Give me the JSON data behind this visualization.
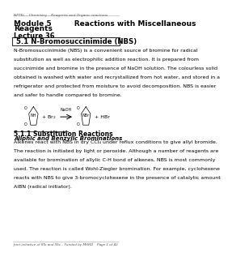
{
  "header_text": "NPTEL – Chemistry – Reagents and Organic reactions",
  "title_line1": "Module 5         Reactions with Miscellaneous",
  "title_line2": "Reagents",
  "lecture": "Lecture 36",
  "section_box": "5.1 N-Bromosuccinimide (NBS)",
  "para1": "N-Bromosuccinimide (NBS) is a convenient source of bromine for radical\nsubstitution as well as electrophilic addition reaction. It is prepared from\nsuccinimide and bromine in the presence of NaOH solution. The colourless solid\nobtained is washed with water and recrystallized from hot water, and stored in a\nrefrigerator and protected from moisture to avoid decomposition. NBS is easier\nand safer to handle compared to bromine.",
  "section2": "5.1.1 Substitution Reactions",
  "subsection2": "Aliphic and Benzylic Brominations",
  "para2": "Alkenes react with NBS in dry CCl₄ under reflux conditions to give allyl bromide.\nThe reaction is initiated by light or peroxide. Although a number of reagents are\navailable for bromination of allylic C-H bond of alkenes, NBS is most commonly\nused. The reaction is called Wohl-Ziegler bromination. For example, cyclohexene\nreacts with NBS to give 3-bromocyclohexene in the presence of catalytic amount\nAIBN (radical initiator).",
  "footer_left": "Joint initiative of IITs and IISc – Funded by MHRD",
  "footer_right": "Page 1 of 42",
  "bg_color": "#ffffff",
  "text_color": "#000000",
  "header_color": "#555555"
}
